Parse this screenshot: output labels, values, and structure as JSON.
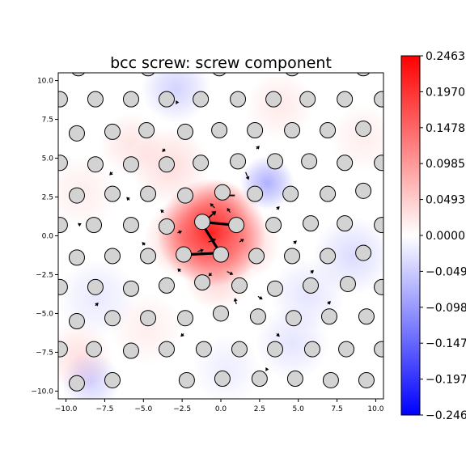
{
  "chart_data": {
    "type": "scatter",
    "title": "bcc screw: screw component",
    "xlabel": "",
    "ylabel": "",
    "xlim": [
      -10.5,
      10.5
    ],
    "ylim": [
      -10.5,
      10.5
    ],
    "xticks": [
      "−10.0",
      "−7.5",
      "−5.0",
      "−2.5",
      "0.0",
      "2.5",
      "5.0",
      "7.5",
      "10.0"
    ],
    "yticks": [
      "10.0",
      "7.5",
      "5.0",
      "2.5",
      "0.0",
      "−2.5",
      "−5.0",
      "−7.5",
      "−10.0"
    ],
    "grid": false,
    "colorbar": {
      "cmap": "bwr",
      "range": [
        -0.2463,
        0.2463
      ],
      "tick_labels": [
        "0.2463",
        "0.1970",
        "0.1478",
        "0.0985",
        "0.0493",
        "0.0000",
        "−0.0493",
        "−0.0985",
        "−0.1478",
        "−0.1970",
        "−0.2463"
      ]
    },
    "atoms": [
      [
        -9.2,
        10.8
      ],
      [
        -4.7,
        10.8
      ],
      [
        -0.1,
        10.8
      ],
      [
        4.6,
        10.8
      ],
      [
        9.2,
        10.8
      ],
      [
        -10.4,
        8.8
      ],
      [
        -8.1,
        8.8
      ],
      [
        -5.8,
        8.8
      ],
      [
        -3.5,
        8.8
      ],
      [
        -1.3,
        8.8
      ],
      [
        1.1,
        8.8
      ],
      [
        3.4,
        8.8
      ],
      [
        5.6,
        8.8
      ],
      [
        8.0,
        8.8
      ],
      [
        10.4,
        8.8
      ],
      [
        -9.3,
        6.6
      ],
      [
        -7.0,
        6.7
      ],
      [
        -4.8,
        6.8
      ],
      [
        -2.3,
        6.7
      ],
      [
        -0.1,
        6.8
      ],
      [
        2.2,
        6.8
      ],
      [
        4.6,
        6.8
      ],
      [
        6.9,
        6.8
      ],
      [
        9.2,
        6.9
      ],
      [
        -10.4,
        4.7
      ],
      [
        -8.1,
        4.6
      ],
      [
        -5.8,
        4.6
      ],
      [
        -3.5,
        4.6
      ],
      [
        -1.3,
        4.7
      ],
      [
        1.1,
        4.8
      ],
      [
        3.5,
        4.8
      ],
      [
        5.7,
        4.8
      ],
      [
        8.0,
        4.7
      ],
      [
        10.4,
        4.7
      ],
      [
        -9.3,
        2.6
      ],
      [
        -7.0,
        2.7
      ],
      [
        -4.7,
        2.7
      ],
      [
        -2.3,
        2.6
      ],
      [
        0.1,
        2.8
      ],
      [
        2.2,
        2.7
      ],
      [
        4.5,
        2.7
      ],
      [
        6.9,
        2.7
      ],
      [
        9.2,
        2.9
      ],
      [
        -10.4,
        0.7
      ],
      [
        -8.2,
        0.7
      ],
      [
        -5.8,
        0.7
      ],
      [
        -3.5,
        0.6
      ],
      [
        -1.2,
        0.9
      ],
      [
        1.0,
        0.7
      ],
      [
        3.4,
        0.7
      ],
      [
        5.8,
        0.8
      ],
      [
        8.0,
        0.8
      ],
      [
        10.4,
        0.7
      ],
      [
        -9.3,
        -1.4
      ],
      [
        -7.0,
        -1.3
      ],
      [
        -4.7,
        -1.3
      ],
      [
        -2.4,
        -1.2
      ],
      [
        -0.0,
        -1.2
      ],
      [
        2.3,
        -1.3
      ],
      [
        4.6,
        -1.3
      ],
      [
        6.9,
        -1.3
      ],
      [
        9.2,
        -1.1
      ],
      [
        -10.4,
        -3.3
      ],
      [
        -8.1,
        -3.3
      ],
      [
        -5.8,
        -3.4
      ],
      [
        -3.5,
        -3.2
      ],
      [
        -1.2,
        -3.0
      ],
      [
        1.2,
        -3.2
      ],
      [
        3.5,
        -3.4
      ],
      [
        5.8,
        -3.2
      ],
      [
        8.2,
        -3.1
      ],
      [
        10.4,
        -3.3
      ],
      [
        -9.3,
        -5.5
      ],
      [
        -7.0,
        -5.3
      ],
      [
        -4.7,
        -5.3
      ],
      [
        -2.3,
        -5.3
      ],
      [
        0.0,
        -5.0
      ],
      [
        2.4,
        -5.2
      ],
      [
        4.7,
        -5.3
      ],
      [
        7.0,
        -5.2
      ],
      [
        9.4,
        -5.2
      ],
      [
        -10.4,
        -7.3
      ],
      [
        -8.2,
        -7.3
      ],
      [
        -5.8,
        -7.4
      ],
      [
        -3.5,
        -7.3
      ],
      [
        -1.1,
        -7.3
      ],
      [
        1.2,
        -7.3
      ],
      [
        3.5,
        -7.3
      ],
      [
        5.9,
        -7.3
      ],
      [
        8.1,
        -7.3
      ],
      [
        10.4,
        -7.3
      ],
      [
        -9.3,
        -9.5
      ],
      [
        -7.0,
        -9.3
      ],
      [
        -2.2,
        -9.3
      ],
      [
        0.1,
        -9.2
      ],
      [
        2.5,
        -9.2
      ],
      [
        4.8,
        -9.2
      ],
      [
        7.1,
        -9.3
      ],
      [
        9.4,
        -9.3
      ]
    ],
    "arrows": [
      [
        -1.2,
        0.8,
        -0.3,
        1.6
      ],
      [
        0.8,
        0.7,
        -1.3,
        0.9
      ],
      [
        -1.1,
        0.6,
        0.2,
        -1.5
      ],
      [
        -2.0,
        -1.2,
        0.0,
        -1.1
      ],
      [
        0.9,
        2.6,
        -0.3,
        2.6
      ],
      [
        1.6,
        4.1,
        1.8,
        3.6
      ],
      [
        -0.8,
        -0.4,
        -0.3,
        -0.2
      ],
      [
        -1.5,
        -1.0,
        -1.1,
        -0.9
      ],
      [
        0.6,
        1.5,
        0.4,
        1.8
      ],
      [
        -0.4,
        1.8,
        -0.7,
        2.1
      ],
      [
        1.2,
        -0.4,
        1.5,
        -0.2
      ],
      [
        -2.8,
        0.2,
        -2.5,
        0.3
      ],
      [
        0.4,
        -2.3,
        0.8,
        -2.5
      ],
      [
        -0.6,
        -2.4,
        -0.8,
        -2.6
      ],
      [
        2.4,
        -3.9,
        2.7,
        -4.1
      ],
      [
        1.0,
        -4.4,
        0.9,
        -4.0
      ],
      [
        -2.6,
        -2.3,
        -2.8,
        -2.1
      ],
      [
        -3.7,
        1.5,
        -3.9,
        1.7
      ],
      [
        3.6,
        1.7,
        3.8,
        1.9
      ],
      [
        -4.9,
        -0.6,
        -5.1,
        -0.4
      ],
      [
        4.7,
        -0.5,
        4.9,
        -0.3
      ],
      [
        5.8,
        -2.4,
        6.0,
        -2.2
      ],
      [
        -5.9,
        2.3,
        -6.1,
        2.5
      ],
      [
        2.3,
        5.6,
        2.5,
        5.8
      ],
      [
        -2.4,
        -6.3,
        -2.6,
        -6.5
      ],
      [
        3.6,
        -6.3,
        3.8,
        -6.5
      ],
      [
        -3.6,
        5.6,
        -3.8,
        5.4
      ],
      [
        6.9,
        -4.4,
        7.1,
        -4.2
      ],
      [
        -7.0,
        4.1,
        -7.2,
        3.9
      ],
      [
        -8.1,
        -4.5,
        -7.9,
        -4.3
      ],
      [
        8.1,
        4.4,
        8.3,
        4.6
      ],
      [
        -9.2,
        0.7,
        -9.0,
        0.8
      ],
      [
        9.2,
        -0.7,
        9.4,
        -0.6
      ],
      [
        -2.9,
        8.6,
        -2.7,
        8.6
      ],
      [
        2.9,
        -8.6,
        3.1,
        -8.6
      ]
    ],
    "field_blobs": [
      [
        -0.6,
        0.2,
        2.2,
        0.246
      ],
      [
        -0.2,
        1.5,
        1.3,
        0.06
      ],
      [
        -2.4,
        -0.2,
        1.6,
        0.06
      ],
      [
        1.6,
        -0.6,
        1.4,
        0.05
      ],
      [
        -0.2,
        -2.6,
        1.4,
        0.05
      ],
      [
        3.0,
        3.4,
        1.1,
        -0.09
      ],
      [
        -3.3,
        4.5,
        1.6,
        0.04
      ],
      [
        -5.8,
        5.9,
        1.3,
        0.03
      ],
      [
        -2.9,
        9.5,
        1.4,
        -0.05
      ],
      [
        3.8,
        8.4,
        1.4,
        0.025
      ],
      [
        8.5,
        -1.3,
        1.6,
        -0.04
      ],
      [
        -8.0,
        -4.0,
        1.6,
        -0.025
      ],
      [
        5.6,
        -3.8,
        1.5,
        -0.03
      ],
      [
        -4.8,
        -6.0,
        1.5,
        0.02
      ],
      [
        -9.2,
        -7.8,
        1.4,
        0.035
      ],
      [
        4.6,
        -6.9,
        1.5,
        -0.03
      ],
      [
        -8.4,
        -9.4,
        1.2,
        -0.05
      ],
      [
        9.2,
        6.3,
        1.4,
        0.02
      ],
      [
        -9.0,
        2.8,
        1.5,
        0.02
      ],
      [
        0.4,
        -8.6,
        1.4,
        -0.02
      ]
    ]
  }
}
